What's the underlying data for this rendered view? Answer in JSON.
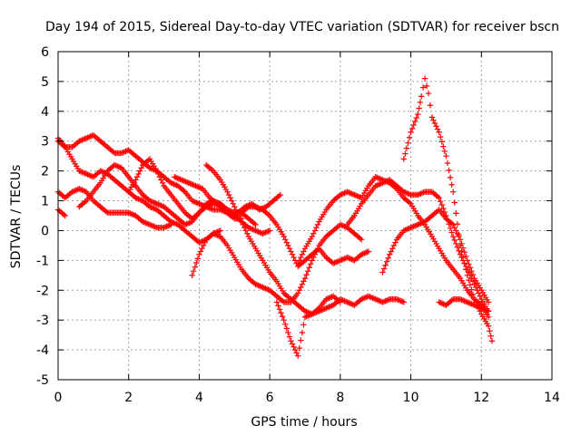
{
  "chart_data": {
    "type": "scatter",
    "title": "Day 194 of 2015, Sidereal Day-to-day VTEC variation (SDTVAR) for receiver bscn",
    "xlabel": "GPS time / hours",
    "ylabel": "SDTVAR / TECUs",
    "xlim": [
      0,
      14
    ],
    "ylim": [
      -5,
      6
    ],
    "xticks": [
      0,
      2,
      4,
      6,
      8,
      10,
      12,
      14
    ],
    "yticks": [
      -5,
      -4,
      -3,
      -2,
      -1,
      0,
      1,
      2,
      3,
      4,
      5,
      6
    ],
    "grid": true,
    "marker": "plus",
    "color": "#ff0000",
    "series": [
      {
        "x": [
          0.0,
          0.2,
          0.4,
          0.6,
          0.8,
          1.0,
          1.2,
          1.4,
          1.6,
          1.8,
          2.0,
          2.2,
          2.4,
          2.6,
          2.8,
          3.0,
          3.2,
          3.4,
          3.6,
          3.8,
          4.0,
          4.2,
          4.4,
          4.6,
          4.8,
          5.0,
          5.2
        ],
        "y": [
          3.0,
          2.8,
          2.8,
          3.0,
          3.1,
          3.2,
          3.0,
          2.8,
          2.6,
          2.6,
          2.7,
          2.5,
          2.3,
          2.1,
          2.0,
          1.8,
          1.6,
          1.5,
          1.3,
          1.0,
          0.9,
          0.8,
          0.7,
          0.7,
          0.6,
          0.4,
          0.4
        ]
      },
      {
        "x": [
          0.0,
          0.2,
          0.4,
          0.6,
          0.8,
          1.0,
          1.2,
          1.4,
          1.6,
          1.8,
          2.0,
          2.2,
          2.4,
          2.6,
          2.8,
          3.0,
          3.2,
          3.4,
          3.6,
          3.8,
          4.0,
          4.2,
          4.4,
          4.6
        ],
        "y": [
          3.1,
          2.8,
          2.4,
          2.0,
          1.9,
          1.8,
          2.0,
          1.9,
          1.7,
          1.5,
          1.3,
          1.1,
          1.0,
          0.8,
          0.7,
          0.5,
          0.3,
          0.2,
          0.0,
          -0.2,
          -0.4,
          -0.3,
          -0.1,
          0.0
        ]
      },
      {
        "x": [
          0.0,
          0.2,
          0.4,
          0.6,
          0.8,
          1.0,
          1.2,
          1.4,
          1.6,
          1.8,
          2.0,
          2.2,
          2.4,
          2.6,
          2.8,
          3.0,
          3.2
        ],
        "y": [
          1.3,
          1.1,
          1.3,
          1.4,
          1.3,
          1.0,
          0.8,
          0.6,
          0.6,
          0.6,
          0.6,
          0.5,
          0.3,
          0.2,
          0.1,
          0.1,
          0.2
        ]
      },
      {
        "x": [
          0.0,
          0.2
        ],
        "y": [
          0.7,
          0.5
        ]
      },
      {
        "x": [
          0.6,
          0.8,
          1.0,
          1.2,
          1.4,
          1.6,
          1.8,
          2.0,
          2.2,
          2.4,
          2.6,
          2.8,
          3.0,
          3.2,
          3.4,
          3.6,
          3.8,
          4.0,
          4.2,
          4.4,
          4.6,
          4.8,
          5.0,
          5.2,
          5.4,
          5.6
        ],
        "y": [
          0.8,
          1.0,
          1.3,
          1.6,
          2.0,
          2.2,
          2.1,
          1.8,
          1.5,
          1.2,
          1.0,
          0.9,
          0.8,
          0.6,
          0.4,
          0.2,
          0.3,
          0.6,
          0.8,
          0.9,
          0.9,
          0.7,
          0.6,
          0.6,
          0.4,
          0.2
        ]
      },
      {
        "x": [
          2.0,
          2.2,
          2.4,
          2.6,
          2.8,
          3.0,
          3.2,
          3.4,
          3.6,
          3.8,
          4.0,
          4.2,
          4.4,
          4.6,
          4.8,
          5.0,
          5.2,
          5.4,
          5.6,
          5.8,
          6.0
        ],
        "y": [
          1.3,
          1.7,
          2.2,
          2.4,
          2.0,
          1.5,
          1.2,
          0.9,
          0.6,
          0.4,
          0.6,
          0.9,
          1.0,
          0.9,
          0.7,
          0.5,
          0.3,
          0.1,
          0.0,
          -0.1,
          0.0
        ]
      },
      {
        "x": [
          3.3,
          3.5,
          3.7,
          3.9,
          4.1,
          4.3,
          4.5,
          4.7,
          4.9,
          5.1,
          5.3,
          5.5,
          5.7,
          5.9,
          6.1,
          6.3
        ],
        "y": [
          1.8,
          1.7,
          1.6,
          1.5,
          1.4,
          1.1,
          0.9,
          0.7,
          0.5,
          0.6,
          0.8,
          0.9,
          0.7,
          0.8,
          1.0,
          1.2
        ]
      },
      {
        "x": [
          3.8,
          4.0,
          4.2,
          4.4,
          4.6,
          4.8,
          5.0,
          5.2,
          5.4,
          5.6,
          5.8,
          6.0,
          6.2,
          6.4,
          6.6,
          6.8,
          7.0,
          7.2,
          7.4,
          7.6,
          7.8,
          8.0,
          8.2,
          8.4,
          8.6
        ],
        "y": [
          -1.5,
          -0.8,
          -0.3,
          -0.1,
          -0.2,
          -0.5,
          -0.9,
          -1.3,
          -1.6,
          -1.8,
          -1.9,
          -2.0,
          -2.2,
          -2.4,
          -2.4,
          -2.1,
          -1.6,
          -1.0,
          -0.5,
          -0.2,
          0.0,
          0.2,
          0.1,
          -0.1,
          -0.3
        ]
      },
      {
        "x": [
          4.2,
          4.4,
          4.6,
          4.8,
          5.0,
          5.2,
          5.4,
          5.6,
          5.8,
          6.0,
          6.2,
          6.4,
          6.6,
          6.8,
          7.0,
          7.2,
          7.4,
          7.6,
          7.8,
          8.0
        ],
        "y": [
          2.2,
          2.0,
          1.7,
          1.3,
          0.8,
          0.3,
          -0.2,
          -0.6,
          -1.0,
          -1.4,
          -1.7,
          -2.1,
          -2.3,
          -2.5,
          -2.7,
          -2.8,
          -2.6,
          -2.3,
          -2.2,
          -2.4
        ]
      },
      {
        "x": [
          6.2,
          6.4,
          6.6,
          6.8,
          7.0,
          7.2,
          7.4,
          7.6,
          7.8,
          8.0,
          8.2,
          8.4,
          8.6,
          8.8,
          9.0,
          9.2,
          9.4,
          9.6,
          9.8
        ],
        "y": [
          -2.4,
          -3.0,
          -3.7,
          -4.2,
          -2.9,
          -2.8,
          -2.7,
          -2.6,
          -2.5,
          -2.3,
          -2.4,
          -2.5,
          -2.3,
          -2.2,
          -2.3,
          -2.4,
          -2.3,
          -2.3,
          -2.4
        ]
      },
      {
        "x": [
          5.2,
          5.4,
          5.6,
          5.8,
          6.0,
          6.2,
          6.4,
          6.6,
          6.8,
          7.0,
          7.2,
          7.4,
          7.6,
          7.8,
          8.0,
          8.2,
          8.4,
          8.6,
          8.8
        ],
        "y": [
          0.6,
          0.8,
          0.8,
          0.7,
          0.5,
          0.2,
          -0.2,
          -0.7,
          -1.2,
          -1.0,
          -0.8,
          -0.6,
          -0.9,
          -1.1,
          -1.0,
          -0.9,
          -1.0,
          -0.8,
          -0.7
        ]
      },
      {
        "x": [
          6.8,
          7.0,
          7.2,
          7.4,
          7.6,
          7.8,
          8.0,
          8.2,
          8.4,
          8.6,
          8.8,
          9.0,
          9.2,
          9.4,
          9.6,
          9.8,
          10.0,
          10.2,
          10.4,
          10.6,
          10.8,
          11.0,
          11.2,
          11.4,
          11.6,
          11.8,
          12.0,
          12.2
        ],
        "y": [
          -1.1,
          -0.6,
          -0.2,
          0.3,
          0.7,
          1.0,
          1.2,
          1.3,
          1.2,
          1.1,
          1.5,
          1.8,
          1.7,
          1.6,
          1.4,
          1.1,
          0.9,
          0.5,
          0.2,
          -0.2,
          -0.6,
          -1.0,
          -1.3,
          -1.6,
          -2.0,
          -2.3,
          -2.5,
          -2.9
        ]
      },
      {
        "x": [
          8.2,
          8.4,
          8.6,
          8.8,
          9.0,
          9.2,
          9.4,
          9.6,
          9.8,
          10.0,
          10.2,
          10.4,
          10.6,
          10.8,
          11.0,
          11.2,
          11.4,
          11.6,
          11.8,
          12.0,
          12.2
        ],
        "y": [
          0.2,
          0.5,
          0.9,
          1.2,
          1.5,
          1.6,
          1.7,
          1.5,
          1.3,
          1.2,
          1.2,
          1.3,
          1.3,
          1.1,
          0.5,
          -0.2,
          -0.8,
          -1.3,
          -1.8,
          -2.3,
          -2.7
        ]
      },
      {
        "x": [
          9.2,
          9.4,
          9.6,
          9.8,
          10.0,
          10.2,
          10.4,
          10.6,
          10.8,
          11.0,
          11.2,
          11.4,
          11.6,
          11.8,
          12.0,
          12.2
        ],
        "y": [
          -1.4,
          -0.8,
          -0.3,
          0.0,
          0.1,
          0.2,
          0.3,
          0.5,
          0.7,
          0.4,
          0.2,
          -0.3,
          -1.0,
          -1.6,
          -2.0,
          -2.4
        ]
      },
      {
        "x": [
          9.8,
          10.0,
          10.2,
          10.3,
          10.4,
          10.5,
          10.6,
          10.8,
          11.0,
          11.2,
          11.4,
          11.6,
          11.8,
          12.0,
          12.2,
          12.3
        ],
        "y": [
          2.4,
          3.3,
          3.9,
          4.5,
          5.1,
          4.6,
          3.8,
          3.3,
          2.5,
          1.3,
          -0.5,
          -1.5,
          -2.3,
          -2.8,
          -3.2,
          -3.7
        ]
      },
      {
        "x": [
          10.8,
          11.0,
          11.2,
          11.4,
          11.6,
          11.8,
          12.0,
          12.2
        ],
        "y": [
          -2.4,
          -2.5,
          -2.3,
          -2.3,
          -2.4,
          -2.5,
          -2.6,
          -2.7
        ]
      }
    ]
  }
}
